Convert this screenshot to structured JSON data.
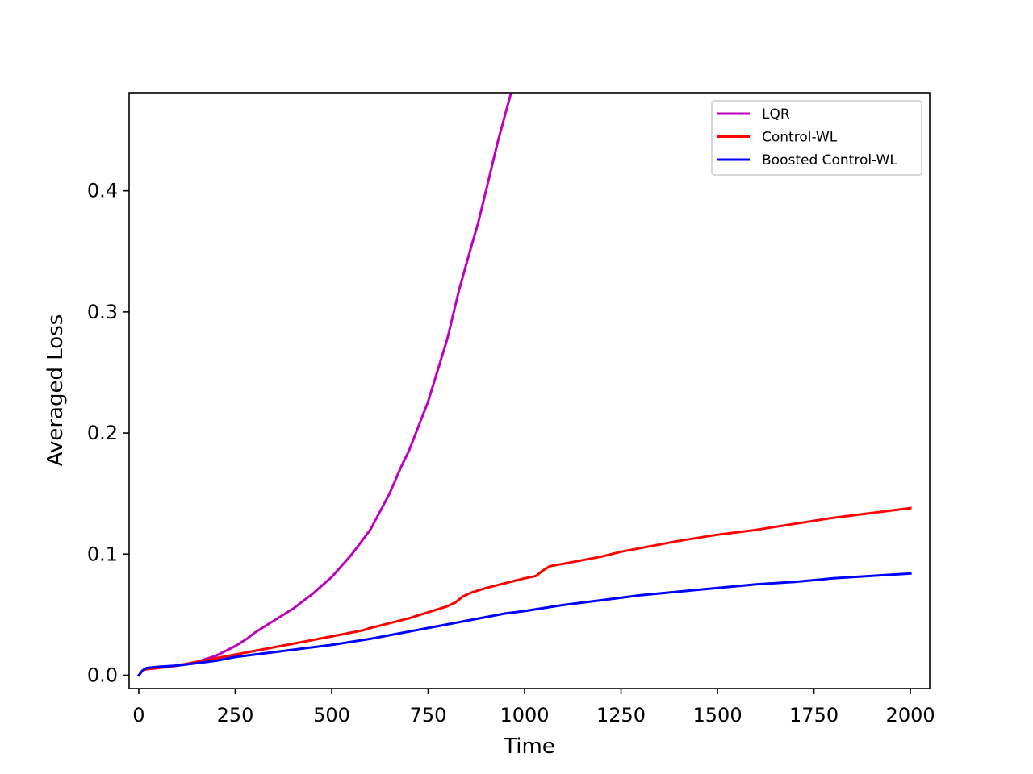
{
  "chart_data": {
    "type": "line",
    "title": "",
    "xlabel": "Time",
    "ylabel": "Averaged Loss",
    "xlim": [
      -25,
      2050
    ],
    "ylim": [
      -0.011,
      0.481
    ],
    "xticks": [
      0,
      250,
      500,
      750,
      1000,
      1250,
      1500,
      1750,
      2000
    ],
    "xtick_labels": [
      "0",
      "250",
      "500",
      "750",
      "1000",
      "1250",
      "1500",
      "1750",
      "2000"
    ],
    "yticks": [
      0.0,
      0.1,
      0.2,
      0.3,
      0.4
    ],
    "ytick_labels": [
      "0.0",
      "0.1",
      "0.2",
      "0.3",
      "0.4"
    ],
    "grid": false,
    "legend_position": "top-right",
    "series": [
      {
        "name": "LQR",
        "color": "#bf00bf",
        "x": [
          0,
          10,
          20,
          50,
          100,
          150,
          200,
          250,
          280,
          300,
          330,
          360,
          400,
          450,
          500,
          550,
          600,
          650,
          680,
          700,
          750,
          800,
          830,
          860,
          880,
          900,
          930,
          965
        ],
        "y": [
          0.0,
          0.004,
          0.005,
          0.006,
          0.008,
          0.011,
          0.016,
          0.024,
          0.03,
          0.035,
          0.041,
          0.047,
          0.055,
          0.067,
          0.081,
          0.099,
          0.12,
          0.15,
          0.172,
          0.185,
          0.226,
          0.278,
          0.318,
          0.352,
          0.374,
          0.4,
          0.44,
          0.481
        ]
      },
      {
        "name": "Control-WL",
        "color": "#ff0000",
        "x": [
          0,
          10,
          20,
          50,
          100,
          150,
          200,
          250,
          300,
          350,
          400,
          450,
          500,
          580,
          600,
          650,
          700,
          750,
          800,
          820,
          840,
          860,
          900,
          950,
          1000,
          1030,
          1045,
          1065,
          1100,
          1150,
          1200,
          1250,
          1300,
          1400,
          1500,
          1600,
          1700,
          1800,
          1900,
          2000
        ],
        "y": [
          0.0,
          0.004,
          0.005,
          0.006,
          0.008,
          0.011,
          0.014,
          0.017,
          0.02,
          0.023,
          0.026,
          0.029,
          0.032,
          0.037,
          0.039,
          0.043,
          0.047,
          0.052,
          0.057,
          0.06,
          0.065,
          0.068,
          0.072,
          0.076,
          0.08,
          0.082,
          0.086,
          0.09,
          0.092,
          0.095,
          0.098,
          0.102,
          0.105,
          0.111,
          0.116,
          0.12,
          0.125,
          0.13,
          0.134,
          0.138
        ]
      },
      {
        "name": "Boosted Control-WL",
        "color": "#0000ff",
        "x": [
          0,
          10,
          20,
          50,
          100,
          150,
          200,
          250,
          300,
          350,
          400,
          450,
          500,
          580,
          600,
          650,
          700,
          750,
          800,
          850,
          900,
          950,
          1000,
          1100,
          1200,
          1300,
          1400,
          1500,
          1600,
          1700,
          1800,
          1900,
          2000
        ],
        "y": [
          0.0,
          0.004,
          0.006,
          0.007,
          0.008,
          0.01,
          0.012,
          0.015,
          0.017,
          0.019,
          0.021,
          0.023,
          0.025,
          0.029,
          0.03,
          0.033,
          0.036,
          0.039,
          0.042,
          0.045,
          0.048,
          0.051,
          0.053,
          0.058,
          0.062,
          0.066,
          0.069,
          0.072,
          0.075,
          0.077,
          0.08,
          0.082,
          0.084
        ]
      }
    ]
  }
}
